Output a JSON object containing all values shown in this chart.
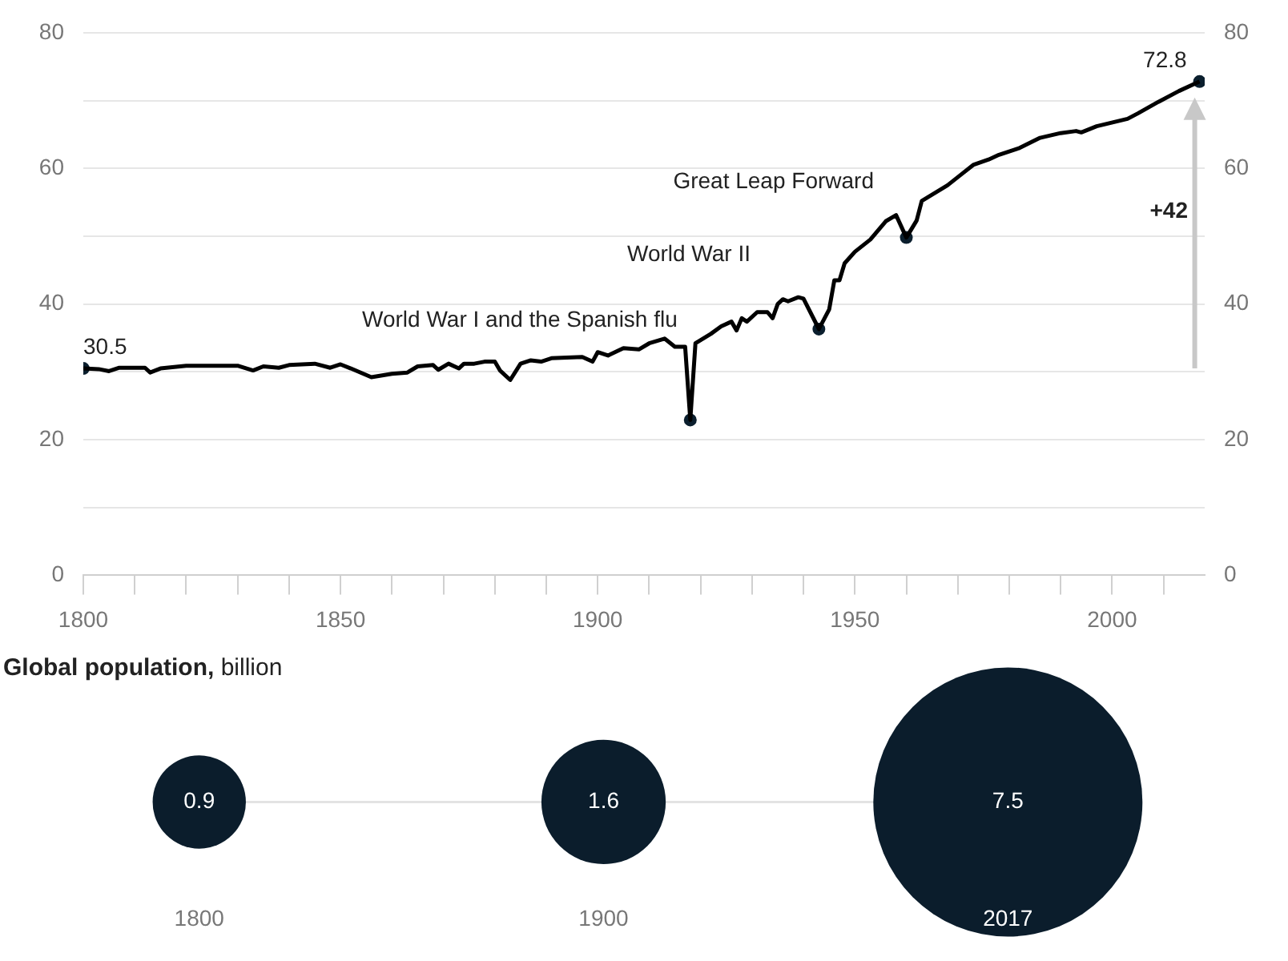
{
  "chart_data": [
    {
      "type": "line",
      "xlim": [
        1800,
        2018
      ],
      "xticks": [
        1800,
        {
          "value": 1810,
          "label": null
        },
        {
          "value": 1820,
          "label": null
        },
        {
          "value": 1830,
          "label": null
        },
        {
          "value": 1840,
          "label": null
        },
        1850,
        {
          "value": 1860,
          "label": null
        },
        {
          "value": 1870,
          "label": null
        },
        {
          "value": 1880,
          "label": null
        },
        {
          "value": 1890,
          "label": null
        },
        1900,
        {
          "value": 1910,
          "label": null
        },
        {
          "value": 1920,
          "label": null
        },
        {
          "value": 1930,
          "label": null
        },
        {
          "value": 1940,
          "label": null
        },
        1950,
        {
          "value": 1960,
          "label": null
        },
        {
          "value": 1970,
          "label": null
        },
        {
          "value": 1980,
          "label": null
        },
        {
          "value": 1990,
          "label": null
        },
        2000,
        {
          "value": 2010,
          "label": null
        }
      ],
      "ylim": [
        0,
        80
      ],
      "yticks": [
        0,
        {
          "value": 10,
          "label": null
        },
        20,
        {
          "value": 30,
          "label": null
        },
        40,
        {
          "value": 50,
          "label": null
        },
        60,
        {
          "value": 70,
          "label": null
        },
        80
      ],
      "y2lim": [
        0,
        80
      ],
      "y2ticks": [
        0,
        20,
        40,
        60,
        80
      ],
      "grid": "y",
      "legend": false,
      "series": [
        {
          "type": "line",
          "color": "#000000",
          "marker": "none",
          "x": [
            1800,
            1803,
            1805,
            1807,
            1812,
            1813,
            1815,
            1820,
            1830,
            1833,
            1835,
            1838,
            1840,
            1845,
            1848,
            1850,
            1852,
            1856,
            1860,
            1863,
            1865,
            1868,
            1869,
            1871,
            1873,
            1874,
            1876,
            1878,
            1880,
            1881,
            1883,
            1885,
            1887,
            1889,
            1891,
            1897,
            1899,
            1900,
            1902,
            1905,
            1908,
            1910,
            1913,
            1915,
            1917,
            1918,
            1919,
            1922,
            1924,
            1926,
            1927,
            1928,
            1929,
            1931,
            1933,
            1934,
            1935,
            1936,
            1937,
            1939,
            1940,
            1943,
            1945,
            1946,
            1947,
            1948,
            1950,
            1953,
            1956,
            1958,
            1960,
            1962,
            1963,
            1968,
            1971,
            1973,
            1976,
            1978,
            1982,
            1986,
            1990,
            1993,
            1994,
            1997,
            2003,
            2005,
            2009,
            2013,
            2017
          ],
          "values": [
            30.5,
            30.4,
            30.1,
            30.6,
            30.6,
            29.9,
            30.5,
            30.9,
            30.9,
            30.2,
            30.8,
            30.6,
            31.0,
            31.2,
            30.6,
            31.1,
            30.5,
            29.2,
            29.7,
            29.9,
            30.8,
            31.0,
            30.3,
            31.2,
            30.5,
            31.2,
            31.2,
            31.5,
            31.5,
            30.2,
            28.8,
            31.2,
            31.7,
            31.5,
            32.0,
            32.2,
            31.5,
            32.9,
            32.4,
            33.5,
            33.3,
            34.2,
            34.9,
            33.7,
            33.7,
            22.9,
            34.2,
            35.6,
            36.7,
            37.4,
            36.1,
            37.9,
            37.4,
            38.8,
            38.8,
            37.9,
            40.0,
            40.7,
            40.4,
            41.0,
            40.8,
            36.3,
            39.2,
            43.5,
            43.5,
            46.0,
            47.7,
            49.5,
            52.2,
            53.1,
            49.8,
            52.3,
            55.2,
            57.5,
            59.3,
            60.5,
            61.3,
            62.0,
            63.0,
            64.5,
            65.2,
            65.5,
            65.3,
            66.2,
            67.3,
            68.1,
            69.8,
            71.4,
            72.8
          ]
        },
        {
          "type": "scatter",
          "color": "#0b1f2e",
          "marker": "circle",
          "x": [
            1800,
            1918,
            1943,
            1960,
            2017
          ],
          "values": [
            30.5,
            22.9,
            36.3,
            49.8,
            72.8
          ]
        }
      ],
      "annotations": [
        {
          "text": "30.5",
          "x": 1800,
          "y": 30.5
        },
        {
          "text": "72.8",
          "x": 2017,
          "y": 72.8
        },
        {
          "text": "World War I and the Spanish flu",
          "x": 1918,
          "y": 34.5
        },
        "World War II",
        "Great Leap Forward",
        "+42"
      ]
    },
    {
      "type": "other",
      "title": "Global population, billion",
      "categories": [
        "1800",
        "1900",
        "2017"
      ],
      "values": [
        0.9,
        1.6,
        7.5
      ],
      "data_labels": true,
      "color": "#0b1d2c"
    }
  ]
}
